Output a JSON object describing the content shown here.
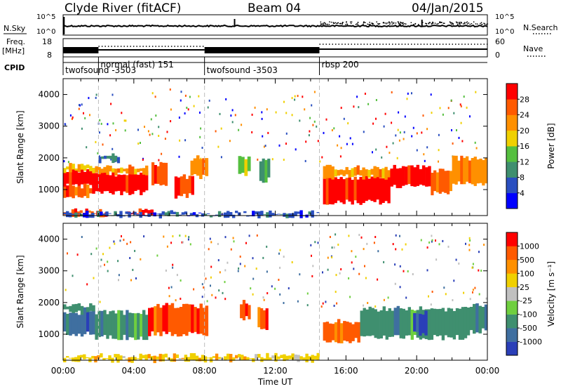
{
  "header": {
    "station": "Clyde River (fitACF)",
    "beam": "Beam 04",
    "date": "04/Jan/2015"
  },
  "summary": {
    "nsky_label": "N.Sky",
    "nsky_ticks": [
      "10^5",
      "10^0"
    ],
    "nsearch_label": "N.Search",
    "nsearch_ticks": [
      "10^5",
      "10^0"
    ],
    "freq_label": "Freq.",
    "freq_unit": "[MHz]",
    "freq_ticks": [
      "18",
      "8"
    ],
    "nave_label": "Nave",
    "nave_ticks": [
      "60",
      "0"
    ],
    "cpid_label": "CPID"
  },
  "cpid_segments": [
    {
      "label": "twofsound -3503",
      "start_h": 0.0,
      "end_h": 2.0
    },
    {
      "label": "normal (fast) 151",
      "start_h": 2.0,
      "end_h": 8.0
    },
    {
      "label": "twofsound -3503",
      "start_h": 8.0,
      "end_h": 14.5
    },
    {
      "label": "rbsp 200",
      "start_h": 14.5,
      "end_h": 24.0
    }
  ],
  "chart_data": [
    {
      "type": "heatmap",
      "quantity": "power",
      "xlabel": "",
      "ylabel": "Slant Range [km]",
      "xlim": [
        0,
        24
      ],
      "ylim": [
        180,
        4500
      ],
      "yticks": [
        "1000",
        "2000",
        "3000",
        "4000"
      ],
      "colorbar": {
        "label": "Power [dB]",
        "ticks": [
          "4",
          "8",
          "12",
          "16",
          "20",
          "24",
          "28"
        ],
        "colors": [
          "#0000ff",
          "#2a4fc0",
          "#3f8f6f",
          "#55bf3f",
          "#f0d000",
          "#ff9000",
          "#ff5a00",
          "#ff0000"
        ]
      },
      "regions": [
        {
          "t0": 0.0,
          "t1": 1.8,
          "r0": 1100,
          "r1": 1600,
          "level": 7
        },
        {
          "t0": 0.0,
          "t1": 1.8,
          "r0": 800,
          "r1": 1100,
          "level": 6
        },
        {
          "t0": 0.0,
          "t1": 1.8,
          "r0": 1600,
          "r1": 1750,
          "level": 4
        },
        {
          "t0": 1.8,
          "t1": 4.8,
          "r0": 900,
          "r1": 1500,
          "level": 7
        },
        {
          "t0": 1.8,
          "t1": 4.8,
          "r0": 1500,
          "r1": 1700,
          "level": 5
        },
        {
          "t0": 2.0,
          "t1": 3.2,
          "r0": 1900,
          "r1": 2100,
          "level": 2
        },
        {
          "t0": 5.0,
          "t1": 5.9,
          "r0": 1200,
          "r1": 1800,
          "level": 6
        },
        {
          "t0": 6.3,
          "t1": 7.4,
          "r0": 800,
          "r1": 1400,
          "level": 7
        },
        {
          "t0": 7.2,
          "t1": 8.2,
          "r0": 1400,
          "r1": 2000,
          "level": 5
        },
        {
          "t0": 9.9,
          "t1": 10.6,
          "r0": 1500,
          "r1": 2000,
          "level": 3
        },
        {
          "t0": 11.1,
          "t1": 11.7,
          "r0": 1300,
          "r1": 1900,
          "level": 2
        },
        {
          "t0": 14.7,
          "t1": 18.5,
          "r0": 600,
          "r1": 1400,
          "level": 7
        },
        {
          "t0": 14.7,
          "t1": 18.5,
          "r0": 1400,
          "r1": 1700,
          "level": 5
        },
        {
          "t0": 18.5,
          "t1": 20.8,
          "r0": 1100,
          "r1": 1700,
          "level": 7
        },
        {
          "t0": 20.8,
          "t1": 22.0,
          "r0": 900,
          "r1": 1600,
          "level": 6
        },
        {
          "t0": 22.0,
          "t1": 24.0,
          "r0": 1200,
          "r1": 2000,
          "level": 5
        },
        {
          "t0": 0.0,
          "t1": 2.5,
          "r0": 200,
          "r1": 320,
          "level": 6
        },
        {
          "t0": 3.6,
          "t1": 5.1,
          "r0": 200,
          "r1": 320,
          "level": 7
        },
        {
          "t0": 0.0,
          "t1": 14.5,
          "r0": 180,
          "r1": 260,
          "level": 1
        }
      ]
    },
    {
      "type": "heatmap",
      "quantity": "velocity",
      "xlabel": "Time UT",
      "ylabel": "Slant Range [km]",
      "xlim": [
        0,
        24
      ],
      "ylim": [
        180,
        4500
      ],
      "yticks": [
        "1000",
        "2000",
        "3000",
        "4000"
      ],
      "xticks": [
        "00:00",
        "04:00",
        "08:00",
        "12:00",
        "16:00",
        "20:00",
        "00:00"
      ],
      "colorbar": {
        "label": "Velocity [m s⁻¹]",
        "ticks": [
          "1000",
          "500",
          "100",
          "25",
          "-25",
          "-100",
          "-500",
          "-1000"
        ],
        "colors": [
          "#2a3fb8",
          "#3f6fa0",
          "#3f8f6f",
          "#6fcf3f",
          "#c0c0c0",
          "#f0d000",
          "#ff9000",
          "#ff5a00",
          "#ff0000"
        ]
      },
      "regions": [
        {
          "t0": 0.0,
          "t1": 1.8,
          "r0": 1000,
          "r1": 1700,
          "level": 1
        },
        {
          "t0": 0.0,
          "t1": 1.8,
          "r0": 1700,
          "r1": 1900,
          "level": 2
        },
        {
          "t0": 1.8,
          "t1": 4.8,
          "r0": 900,
          "r1": 1700,
          "level": 2
        },
        {
          "t0": 4.8,
          "t1": 8.2,
          "r0": 1000,
          "r1": 1900,
          "level": 7
        },
        {
          "t0": 10.0,
          "t1": 10.6,
          "r0": 1500,
          "r1": 2000,
          "level": 7
        },
        {
          "t0": 11.0,
          "t1": 11.6,
          "r0": 1200,
          "r1": 1800,
          "level": 7
        },
        {
          "t0": 14.7,
          "t1": 16.8,
          "r0": 800,
          "r1": 1400,
          "level": 7
        },
        {
          "t0": 16.8,
          "t1": 23.0,
          "r0": 900,
          "r1": 1800,
          "level": 2
        },
        {
          "t0": 19.8,
          "t1": 20.6,
          "r0": 1000,
          "r1": 1700,
          "level": 0
        },
        {
          "t0": 23.0,
          "t1": 24.0,
          "r0": 1100,
          "r1": 1900,
          "level": 2
        },
        {
          "t0": 0.0,
          "t1": 14.5,
          "r0": 180,
          "r1": 320,
          "level": 5
        }
      ]
    }
  ],
  "colors": {
    "frame": "#000000",
    "dashline": "#bdbdbd"
  }
}
